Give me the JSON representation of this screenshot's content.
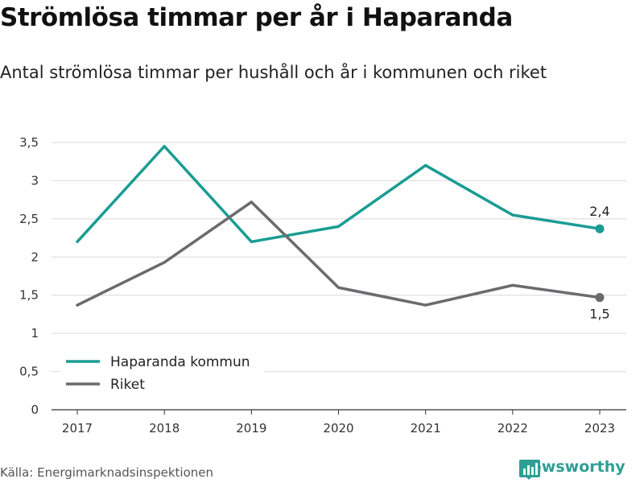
{
  "title": "Strömlösa timmar per år i Haparanda",
  "subtitle": "Antal strömlösa timmar per hushåll och år i kommunen och riket",
  "source": "Källa: Energimarknadsinspektionen",
  "brand": "Newsworthy",
  "colors": {
    "haparanda": "#1a9c93",
    "riket": "#6b6b6e",
    "grid": "#d9d9d9",
    "brand": "#2f9e95"
  },
  "chart_data": {
    "type": "line",
    "x": [
      "2017",
      "2018",
      "2019",
      "2020",
      "2021",
      "2022",
      "2023"
    ],
    "ylim": [
      0,
      3.5
    ],
    "yticks": [
      "0",
      "0,5",
      "1",
      "1,5",
      "2",
      "2,5",
      "3",
      "3,5"
    ],
    "grid": "horizontal",
    "legend": "bottom-left",
    "series": [
      {
        "name": "Haparanda kommun",
        "values": [
          2.2,
          3.45,
          2.2,
          2.4,
          3.2,
          2.55,
          2.37
        ],
        "end_label": "2,4"
      },
      {
        "name": "Riket",
        "values": [
          1.37,
          1.93,
          2.72,
          1.6,
          1.37,
          1.63,
          1.47
        ],
        "end_label": "1,5"
      }
    ]
  }
}
